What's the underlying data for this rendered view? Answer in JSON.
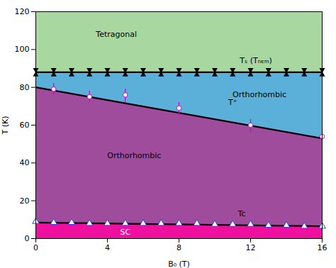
{
  "chart_data": {
    "type": "scatter",
    "xlabel": "B₀ (T)",
    "ylabel": "T (K)",
    "xlim": [
      0,
      16
    ],
    "ylim": [
      0,
      120
    ],
    "xticks": [
      0,
      4,
      8,
      12,
      16
    ],
    "yticks": [
      0,
      20,
      40,
      60,
      80,
      100,
      120
    ],
    "grid": false,
    "regions": [
      {
        "x": [
          0,
          16
        ],
        "low": [
          88,
          88
        ],
        "high": [
          120,
          120
        ],
        "color": "#a8d8a0"
      },
      {
        "x": [
          0,
          16
        ],
        "low": [
          80,
          53
        ],
        "high": [
          88,
          88
        ],
        "color": "#5ab0d8"
      },
      {
        "x": [
          0,
          16
        ],
        "low": [
          8.5,
          6.5
        ],
        "high": [
          80,
          53
        ],
        "color": "#a04c9c"
      },
      {
        "x": [
          0,
          16
        ],
        "low": [
          0,
          0
        ],
        "high": [
          8.5,
          6.5
        ],
        "color": "#f010a0"
      }
    ],
    "series": [
      {
        "type": "line",
        "x": [
          0,
          16
        ],
        "values": [
          88,
          88
        ],
        "color": "#000000"
      },
      {
        "type": "line",
        "x": [
          0,
          16
        ],
        "values": [
          80,
          53
        ],
        "color": "#000000"
      },
      {
        "type": "line",
        "x": [
          0,
          16
        ],
        "values": [
          8.5,
          6.5
        ],
        "color": "#000000"
      },
      {
        "type": "scatter",
        "marker": "hourglass",
        "color": "#000000",
        "x": [
          0,
          1,
          2,
          3,
          4,
          5,
          6,
          7,
          8,
          9,
          10,
          11,
          12,
          13,
          14,
          15,
          16
        ],
        "values": [
          88,
          88,
          88,
          88,
          88,
          88,
          88,
          88,
          88,
          88,
          88,
          88,
          88,
          88,
          88,
          88,
          88
        ],
        "yerr_low": [
          1.2,
          1.2,
          1.2,
          1.2,
          1.2,
          1.2,
          1.2,
          1.2,
          1.2,
          1.2,
          1.2,
          1.2,
          1.2,
          1.2,
          1.2,
          1.2,
          1.2
        ],
        "yerr_high": [
          1.2,
          1.2,
          1.2,
          1.2,
          1.2,
          1.2,
          1.2,
          1.2,
          1.2,
          1.2,
          1.2,
          1.2,
          1.2,
          1.2,
          1.2,
          1.2,
          1.2
        ]
      },
      {
        "type": "scatter",
        "marker": "circle",
        "color": "#cc00cc",
        "x": [
          1,
          3,
          5,
          8,
          12,
          16
        ],
        "values": [
          79,
          75,
          76,
          69,
          60,
          54
        ],
        "yerr_low": [
          3,
          3,
          4,
          4,
          4,
          3
        ],
        "yerr_high": [
          3,
          3,
          3,
          3,
          3,
          3
        ]
      },
      {
        "type": "scatter",
        "marker": "triangle",
        "color": "#2244ee",
        "x": [
          0,
          1,
          2,
          3,
          4,
          5,
          6,
          7,
          8,
          9,
          10,
          11,
          12,
          13,
          14,
          15,
          16
        ],
        "values": [
          9,
          8.5,
          8.5,
          8,
          8,
          8,
          8,
          8,
          8,
          8,
          7.5,
          7.5,
          7.5,
          7,
          7,
          6.5,
          6.5
        ],
        "yerr_low": [
          1.2,
          1.2,
          1.2,
          1.2,
          1.2,
          1.2,
          1.2,
          1.2,
          1.2,
          1.2,
          1.2,
          1.2,
          1.2,
          1.2,
          1.2,
          1.2,
          1.2
        ],
        "yerr_high": [
          1.2,
          1.2,
          1.2,
          1.2,
          1.2,
          1.2,
          1.2,
          1.2,
          1.2,
          1.2,
          1.2,
          1.2,
          1.2,
          1.2,
          1.2,
          1.2,
          1.2
        ]
      }
    ],
    "annotations": [
      {
        "text": "Tetragonal",
        "x": 4.5,
        "y": 108,
        "color": "#000000"
      },
      {
        "text": "Orthorhombic",
        "x": 12.5,
        "y": 76,
        "color": "#000000"
      },
      {
        "text": "Orthorhombic",
        "x": 5.5,
        "y": 44,
        "color": "#000000"
      },
      {
        "text": "SC",
        "x": 5.0,
        "y": 3.5,
        "color": "#ffffff"
      },
      {
        "text": "Tₛ (Tₙₑₘ)",
        "x": 12.3,
        "y": 94,
        "color": "#000000"
      },
      {
        "text": "T⁺",
        "x": 11.0,
        "y": 72,
        "color": "#000000"
      },
      {
        "text": "Tc",
        "x": 11.5,
        "y": 13,
        "color": "#000000"
      }
    ]
  }
}
